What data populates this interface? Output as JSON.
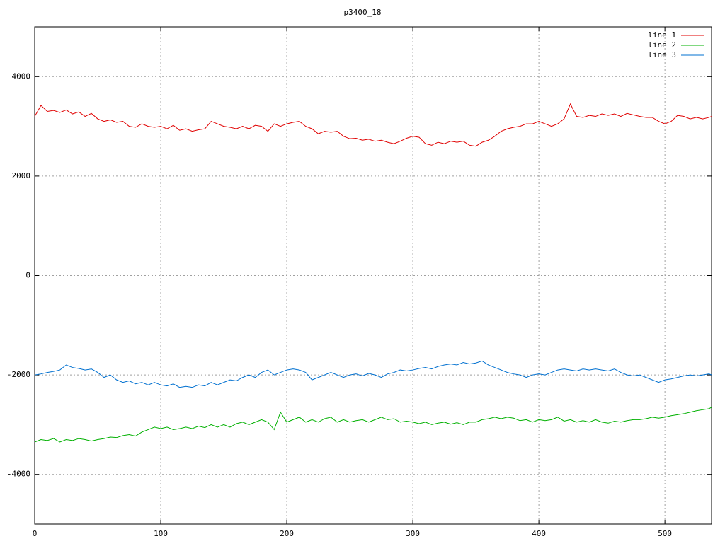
{
  "chart_data": {
    "type": "line",
    "title": "p3400_18",
    "x": [
      0,
      5,
      10,
      15,
      20,
      25,
      30,
      35,
      40,
      45,
      50,
      55,
      60,
      65,
      70,
      75,
      80,
      85,
      90,
      95,
      100,
      105,
      110,
      115,
      120,
      125,
      130,
      135,
      140,
      145,
      150,
      155,
      160,
      165,
      170,
      175,
      180,
      185,
      190,
      195,
      200,
      205,
      210,
      215,
      220,
      225,
      230,
      235,
      240,
      245,
      250,
      255,
      260,
      265,
      270,
      275,
      280,
      285,
      290,
      295,
      300,
      305,
      310,
      315,
      320,
      325,
      330,
      335,
      340,
      345,
      350,
      355,
      360,
      365,
      370,
      375,
      380,
      385,
      390,
      395,
      400,
      405,
      410,
      415,
      420,
      425,
      430,
      435,
      440,
      445,
      450,
      455,
      460,
      465,
      470,
      475,
      480,
      485,
      490,
      495,
      500,
      505,
      510,
      515,
      520,
      525,
      530,
      535,
      537
    ],
    "series": [
      {
        "name": "line 1",
        "color": "#e00000",
        "values": [
          3200,
          3420,
          3300,
          3320,
          3280,
          3330,
          3250,
          3290,
          3200,
          3260,
          3150,
          3100,
          3130,
          3080,
          3100,
          3000,
          2980,
          3050,
          3000,
          2980,
          3000,
          2950,
          3020,
          2920,
          2950,
          2900,
          2930,
          2950,
          3100,
          3050,
          3000,
          2980,
          2950,
          3000,
          2950,
          3020,
          3000,
          2900,
          3050,
          3000,
          3050,
          3080,
          3100,
          3000,
          2950,
          2850,
          2900,
          2880,
          2900,
          2800,
          2750,
          2760,
          2720,
          2740,
          2700,
          2720,
          2680,
          2650,
          2700,
          2760,
          2800,
          2780,
          2650,
          2620,
          2680,
          2650,
          2700,
          2680,
          2700,
          2620,
          2600,
          2680,
          2720,
          2800,
          2900,
          2950,
          2980,
          3000,
          3050,
          3050,
          3100,
          3050,
          3000,
          3050,
          3150,
          3450,
          3200,
          3180,
          3220,
          3200,
          3250,
          3220,
          3250,
          3200,
          3260,
          3230,
          3200,
          3180,
          3180,
          3100,
          3050,
          3100,
          3220,
          3200,
          3150,
          3180,
          3150,
          3180,
          3200
        ]
      },
      {
        "name": "line 2",
        "color": "#00b000",
        "values": [
          -3350,
          -3300,
          -3320,
          -3280,
          -3350,
          -3300,
          -3320,
          -3280,
          -3300,
          -3330,
          -3300,
          -3280,
          -3250,
          -3260,
          -3220,
          -3200,
          -3230,
          -3150,
          -3100,
          -3050,
          -3080,
          -3050,
          -3100,
          -3080,
          -3050,
          -3080,
          -3030,
          -3060,
          -3000,
          -3050,
          -3000,
          -3050,
          -2980,
          -2950,
          -3000,
          -2950,
          -2900,
          -2950,
          -3100,
          -2750,
          -2950,
          -2900,
          -2850,
          -2950,
          -2900,
          -2950,
          -2880,
          -2850,
          -2950,
          -2900,
          -2950,
          -2920,
          -2900,
          -2950,
          -2900,
          -2850,
          -2900,
          -2880,
          -2950,
          -2930,
          -2950,
          -2980,
          -2950,
          -3000,
          -2970,
          -2950,
          -2990,
          -2960,
          -3000,
          -2950,
          -2950,
          -2900,
          -2880,
          -2850,
          -2880,
          -2850,
          -2870,
          -2920,
          -2900,
          -2950,
          -2900,
          -2920,
          -2900,
          -2850,
          -2930,
          -2900,
          -2950,
          -2920,
          -2950,
          -2900,
          -2950,
          -2970,
          -2930,
          -2950,
          -2920,
          -2900,
          -2900,
          -2880,
          -2850,
          -2870,
          -2850,
          -2820,
          -2800,
          -2780,
          -2750,
          -2720,
          -2700,
          -2680,
          -2650
        ]
      },
      {
        "name": "line 3",
        "color": "#0070d0",
        "values": [
          -2000,
          -1980,
          -1950,
          -1930,
          -1900,
          -1800,
          -1850,
          -1870,
          -1900,
          -1880,
          -1950,
          -2050,
          -2000,
          -2100,
          -2150,
          -2120,
          -2180,
          -2150,
          -2200,
          -2150,
          -2200,
          -2220,
          -2180,
          -2250,
          -2230,
          -2250,
          -2200,
          -2220,
          -2150,
          -2200,
          -2150,
          -2100,
          -2120,
          -2050,
          -2000,
          -2050,
          -1950,
          -1900,
          -2000,
          -1950,
          -1900,
          -1880,
          -1900,
          -1950,
          -2100,
          -2050,
          -2000,
          -1950,
          -2000,
          -2050,
          -2000,
          -1980,
          -2020,
          -1970,
          -2000,
          -2050,
          -1980,
          -1950,
          -1900,
          -1920,
          -1900,
          -1870,
          -1850,
          -1880,
          -1830,
          -1800,
          -1780,
          -1800,
          -1750,
          -1780,
          -1760,
          -1720,
          -1800,
          -1850,
          -1900,
          -1950,
          -1980,
          -2000,
          -2050,
          -2000,
          -1980,
          -2000,
          -1950,
          -1900,
          -1880,
          -1900,
          -1920,
          -1880,
          -1900,
          -1880,
          -1900,
          -1920,
          -1880,
          -1950,
          -2000,
          -2020,
          -2000,
          -2050,
          -2100,
          -2150,
          -2100,
          -2080,
          -2050,
          -2020,
          -2000,
          -2020,
          -2000,
          -1980,
          -2000
        ]
      }
    ],
    "xlim": [
      0,
      537
    ],
    "xticks": [
      0,
      100,
      200,
      300,
      400,
      500
    ],
    "ylim": [
      -5000,
      5000
    ],
    "yticks": [
      -4000,
      -2000,
      0,
      2000,
      4000
    ],
    "grid": true,
    "legend": "top-right"
  }
}
